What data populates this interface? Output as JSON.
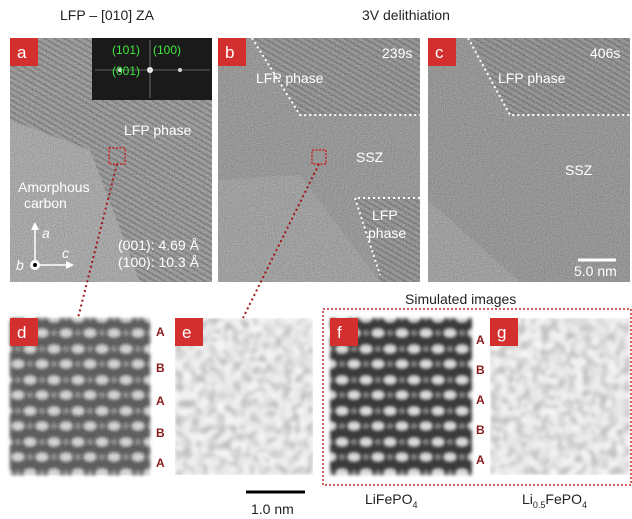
{
  "header": {
    "left_title": "LFP – [010] ZA",
    "right_title": "3V delithiation"
  },
  "panels": {
    "a": {
      "label": "a",
      "fft_spots": [
        "(101)",
        "(100)",
        "(001)"
      ],
      "phase": "LFP phase",
      "amorphous": [
        "Amorphous",
        "carbon"
      ],
      "axes": [
        "a",
        "b",
        "c"
      ],
      "spacings": [
        "(001): 4.69 Å",
        "(100): 10.3 Å"
      ]
    },
    "b": {
      "label": "b",
      "time": "239s",
      "phase_top": "LFP phase",
      "ssz": "SSZ",
      "phase_bottom": [
        "LFP",
        "phase"
      ]
    },
    "c": {
      "label": "c",
      "time": "406s",
      "phase_top": "LFP phase",
      "ssz": "SSZ",
      "scale_bar": "5.0 nm"
    },
    "d": {
      "label": "d",
      "stacking": [
        "A",
        "B",
        "A",
        "B",
        "A"
      ]
    },
    "e": {
      "label": "e"
    },
    "f": {
      "label": "f",
      "stacking": [
        "A",
        "B",
        "A",
        "B",
        "A"
      ]
    },
    "g": {
      "label": "g"
    }
  },
  "simulated_title": "Simulated images",
  "scale_bar": "1.0 nm",
  "captions": [
    [
      "LiFePO",
      "4"
    ],
    [
      "Li",
      "0.5",
      "FePO",
      "4"
    ]
  ]
}
